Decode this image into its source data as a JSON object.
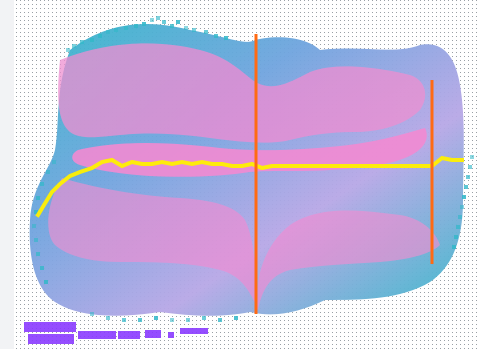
{
  "canvas": {
    "background_color": "#ffffff",
    "grid_color": "#9aa0a6",
    "left_strip_color": "#f2f3f5"
  },
  "blob": {
    "colors": {
      "outer_teal": "#32b8c9",
      "mid_blue": "#6fa4de",
      "lavender": "#b7a7e6",
      "pink": "#ee8fd0",
      "pink_hot": "#f28ad2"
    }
  },
  "markers": {
    "orange_color": "#ff6a13",
    "yellow_color": "#fff000",
    "purple_color": "#8a3bff"
  }
}
